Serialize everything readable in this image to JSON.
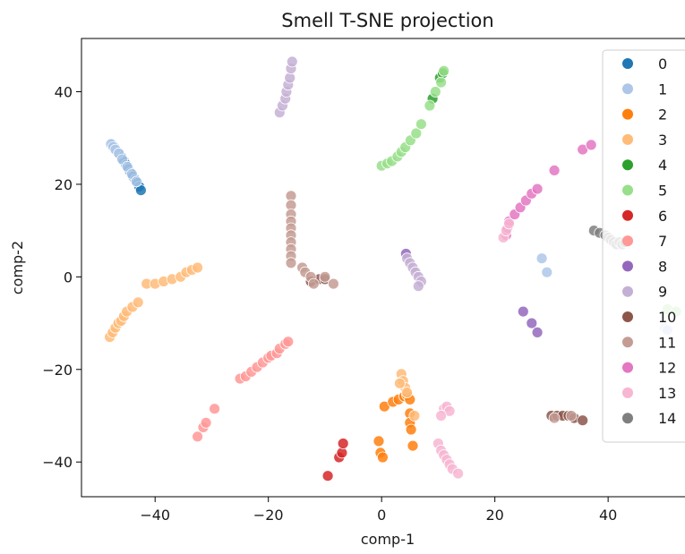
{
  "chart_data": {
    "type": "scatter",
    "title": "Smell T-SNE projection",
    "xlabel": "comp-1",
    "ylabel": "comp-2",
    "xlim": [
      -53,
      55
    ],
    "ylim": [
      -47.5,
      51.5
    ],
    "xticks": [
      -40,
      -20,
      0,
      20,
      40
    ],
    "yticks": [
      -40,
      -20,
      0,
      20,
      40
    ],
    "xtick_labels": [
      "−40",
      "−20",
      "0",
      "20",
      "40"
    ],
    "ytick_labels": [
      "−40",
      "−20",
      "0",
      "20",
      "40"
    ],
    "grid": false,
    "legend_position": "top-right",
    "series": [
      {
        "name": "0",
        "color": "#1f77b4",
        "points": [
          [
            -47.5,
            28.5
          ],
          [
            -47.2,
            28
          ],
          [
            -46.8,
            27.2
          ],
          [
            -46.3,
            26.5
          ],
          [
            -45.9,
            25.8
          ],
          [
            -45.5,
            25
          ],
          [
            -45.1,
            24.2
          ],
          [
            -44.7,
            23.3
          ],
          [
            -44.3,
            22.5
          ],
          [
            -43.9,
            21.7
          ],
          [
            -43.5,
            21
          ],
          [
            -43.1,
            20.3
          ],
          [
            -42.8,
            19.5
          ],
          [
            -42.5,
            18.7
          ]
        ]
      },
      {
        "name": "1",
        "color": "#aec7e8",
        "points": [
          [
            -47.8,
            28.7
          ],
          [
            -47.4,
            28.1
          ],
          [
            -47,
            27.5
          ],
          [
            -46.4,
            26.7
          ],
          [
            -45.8,
            25.4
          ],
          [
            -44.9,
            23.8
          ],
          [
            -44.1,
            22.2
          ],
          [
            -43.3,
            20.6
          ],
          [
            28.3,
            4
          ],
          [
            29.2,
            1
          ],
          [
            50,
            -11
          ],
          [
            50.5,
            -11.5
          ]
        ]
      },
      {
        "name": "2",
        "color": "#ff7f0e",
        "points": [
          [
            0.5,
            -28
          ],
          [
            2,
            -27
          ],
          [
            3,
            -26.5
          ],
          [
            4,
            -25.8
          ],
          [
            4.5,
            -25.5
          ],
          [
            5,
            -26.5
          ],
          [
            5,
            -29.5
          ],
          [
            5,
            -31.5
          ],
          [
            5.2,
            -33
          ],
          [
            5.5,
            -36.5
          ],
          [
            -0.5,
            -35.5
          ],
          [
            -0.2,
            -38
          ],
          [
            0.2,
            -39
          ]
        ]
      },
      {
        "name": "3",
        "color": "#ffbb78",
        "points": [
          [
            -48,
            -13
          ],
          [
            -47.5,
            -12
          ],
          [
            -47,
            -11
          ],
          [
            -46.5,
            -10
          ],
          [
            -46,
            -9.5
          ],
          [
            -45.5,
            -8.5
          ],
          [
            -45,
            -7.5
          ],
          [
            -44,
            -6.5
          ],
          [
            -43,
            -5.5
          ],
          [
            -41.5,
            -1.5
          ],
          [
            -40,
            -1.5
          ],
          [
            -38.5,
            -1
          ],
          [
            -37,
            -0.5
          ],
          [
            -35.5,
            0
          ],
          [
            -34.5,
            1
          ],
          [
            -33.5,
            1.5
          ],
          [
            -32.5,
            2
          ],
          [
            3.5,
            -21
          ],
          [
            3.8,
            -22.5
          ],
          [
            4.2,
            -24
          ],
          [
            4.5,
            -25
          ],
          [
            3.2,
            -23
          ],
          [
            5.8,
            -30
          ]
        ]
      },
      {
        "name": "4",
        "color": "#2ca02c",
        "points": [
          [
            9,
            38.5
          ],
          [
            10.3,
            43
          ],
          [
            10.8,
            44
          ]
        ]
      },
      {
        "name": "5",
        "color": "#98df8a",
        "points": [
          [
            0,
            24
          ],
          [
            1,
            24.5
          ],
          [
            1.8,
            25
          ],
          [
            2.8,
            26
          ],
          [
            3.5,
            27
          ],
          [
            4.2,
            28
          ],
          [
            5.1,
            29.5
          ],
          [
            6.1,
            31
          ],
          [
            7,
            33
          ],
          [
            8.5,
            37
          ],
          [
            9.5,
            40
          ],
          [
            10.5,
            42
          ],
          [
            11,
            44.5
          ],
          [
            50.5,
            -7
          ],
          [
            52,
            -7.5
          ]
        ]
      },
      {
        "name": "6",
        "color": "#d62728",
        "points": [
          [
            -9.5,
            -43
          ],
          [
            -7.5,
            -39
          ],
          [
            -7,
            -38
          ],
          [
            -6.8,
            -36
          ]
        ]
      },
      {
        "name": "7",
        "color": "#ff9896",
        "points": [
          [
            -25,
            -22
          ],
          [
            -24,
            -21.5
          ],
          [
            -23,
            -20.5
          ],
          [
            -22,
            -19.5
          ],
          [
            -21,
            -18.5
          ],
          [
            -20,
            -17.5
          ],
          [
            -19.5,
            -17
          ],
          [
            -18.5,
            -16.5
          ],
          [
            -18,
            -15.5
          ],
          [
            -17,
            -14.5
          ],
          [
            -16.5,
            -14
          ],
          [
            -32.5,
            -34.5
          ],
          [
            -31.5,
            -32.5
          ],
          [
            -31,
            -31.5
          ],
          [
            -29.5,
            -28.5
          ]
        ]
      },
      {
        "name": "8",
        "color": "#9467bd",
        "points": [
          [
            25,
            -7.5
          ],
          [
            26.5,
            -10
          ],
          [
            27.5,
            -12
          ],
          [
            4.3,
            5
          ]
        ]
      },
      {
        "name": "9",
        "color": "#c5b0d5",
        "points": [
          [
            -18,
            35.5
          ],
          [
            -17.5,
            37
          ],
          [
            -17,
            38.5
          ],
          [
            -16.8,
            40
          ],
          [
            -16.5,
            41.5
          ],
          [
            -16.2,
            43
          ],
          [
            -16,
            45
          ],
          [
            -15.8,
            46.5
          ],
          [
            4.5,
            4
          ],
          [
            5,
            3
          ],
          [
            5.5,
            2
          ],
          [
            6,
            1
          ],
          [
            6.5,
            0
          ],
          [
            7,
            -1
          ],
          [
            6.5,
            -2
          ]
        ]
      },
      {
        "name": "10",
        "color": "#8c564b",
        "points": [
          [
            -12.5,
            -1
          ],
          [
            -11,
            -0.5
          ],
          [
            -10,
            -0.5
          ],
          [
            30,
            -30
          ],
          [
            31,
            -30
          ],
          [
            32,
            -30
          ],
          [
            33,
            -30
          ],
          [
            34,
            -30.5
          ],
          [
            35.5,
            -31
          ]
        ]
      },
      {
        "name": "11",
        "color": "#c49c94",
        "points": [
          [
            -16,
            17.5
          ],
          [
            -16,
            15.5
          ],
          [
            -16,
            13.5
          ],
          [
            -16,
            12
          ],
          [
            -16,
            10.5
          ],
          [
            -16,
            9
          ],
          [
            -16,
            7.5
          ],
          [
            -16,
            6
          ],
          [
            -16,
            4.5
          ],
          [
            -16,
            3
          ],
          [
            -14,
            2
          ],
          [
            -13.5,
            1
          ],
          [
            -12.5,
            0
          ],
          [
            -12,
            -1.5
          ],
          [
            -10,
            0
          ],
          [
            -8.5,
            -1.5
          ],
          [
            30.5,
            -30.5
          ],
          [
            33.5,
            -30
          ]
        ]
      },
      {
        "name": "12",
        "color": "#e377c2",
        "points": [
          [
            22,
            9
          ],
          [
            22.2,
            10.5
          ],
          [
            22.5,
            12
          ],
          [
            23.5,
            13.5
          ],
          [
            24.5,
            15
          ],
          [
            25.5,
            16.5
          ],
          [
            26.5,
            18
          ],
          [
            27.5,
            19
          ],
          [
            30.5,
            23
          ],
          [
            35.5,
            27.5
          ],
          [
            37,
            28.5
          ]
        ]
      },
      {
        "name": "13",
        "color": "#f7b6d2",
        "points": [
          [
            21.5,
            8.5
          ],
          [
            22,
            10
          ],
          [
            22.5,
            11.5
          ],
          [
            11,
            -28.5
          ],
          [
            11.5,
            -28
          ],
          [
            12,
            -29
          ],
          [
            10.5,
            -30
          ],
          [
            10,
            -36
          ],
          [
            10.5,
            -37.5
          ],
          [
            11,
            -38.5
          ],
          [
            11.5,
            -39.5
          ],
          [
            12,
            -40.5
          ],
          [
            12.5,
            -41.5
          ],
          [
            13.5,
            -42.5
          ]
        ]
      },
      {
        "name": "14",
        "color": "#7f7f7f",
        "points": [
          [
            37.5,
            10
          ],
          [
            38.5,
            9.5
          ],
          [
            39.5,
            9
          ],
          [
            40,
            8.5
          ],
          [
            40.5,
            8
          ],
          [
            41,
            7.5
          ],
          [
            41.5,
            7
          ],
          [
            42,
            7.5
          ],
          [
            42.5,
            7
          ],
          [
            43,
            7.5
          ]
        ]
      }
    ]
  }
}
